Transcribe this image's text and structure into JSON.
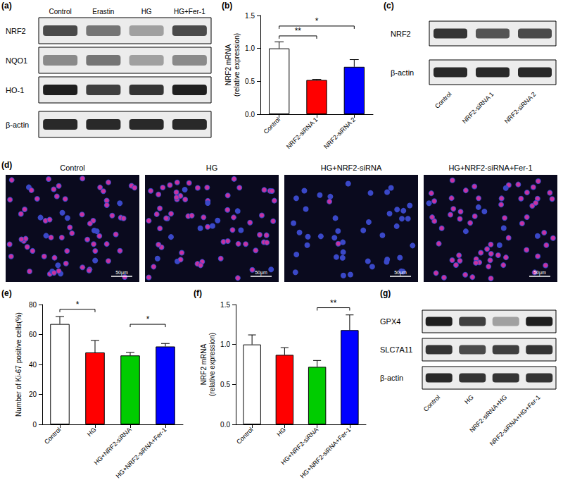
{
  "panels": {
    "a": {
      "label": "(a)",
      "columns": [
        "Control",
        "Erastin",
        "HG",
        "HG+Fer-1"
      ],
      "rows": [
        {
          "name": "NRF2",
          "bands": [
            0.75,
            0.55,
            0.35,
            0.75
          ]
        },
        {
          "name": "NQO1",
          "bands": [
            0.45,
            0.55,
            0.35,
            0.45
          ]
        },
        {
          "name": "HO-1",
          "bands": [
            0.95,
            0.8,
            0.85,
            0.95
          ]
        },
        {
          "name": "β-actin",
          "bands": [
            0.9,
            0.9,
            0.9,
            0.9
          ]
        }
      ]
    },
    "c": {
      "label": "(c)",
      "columns": [
        "Control",
        "NRF2-siRNA 1",
        "NRF2-siRNA 2"
      ],
      "rows": [
        {
          "name": "NRF2",
          "bands": [
            0.85,
            0.7,
            0.75
          ]
        },
        {
          "name": "β-actin",
          "bands": [
            0.9,
            0.9,
            0.9
          ]
        }
      ]
    },
    "d": {
      "label": "(d)",
      "images": [
        "Control",
        "HG",
        "HG+NRF2-siRNA",
        "HG+NRF2-siRNA+Fer-1"
      ],
      "scale_bar": "50μm"
    },
    "g": {
      "label": "(g)",
      "columns": [
        "Control",
        "HG",
        "NRF2-siRNA+HG",
        "NRF2-siRNA+HG+Fer-1"
      ],
      "rows": [
        {
          "name": "GPX4",
          "bands": [
            0.95,
            0.8,
            0.35,
            0.95
          ]
        },
        {
          "name": "SLC7A11",
          "bands": [
            0.85,
            0.75,
            0.8,
            0.85
          ]
        },
        {
          "name": "β-actin",
          "bands": [
            0.9,
            0.85,
            0.85,
            0.85
          ]
        }
      ]
    }
  },
  "chart_data": [
    {
      "type": "bar",
      "title": "(b)",
      "y_label": [
        "NRF2 mRNA",
        "(relative expression)"
      ],
      "categories": [
        "Control",
        "NRF2-siRNA 1",
        "NRF2-siRNA 2"
      ],
      "values": [
        1.0,
        0.52,
        0.72
      ],
      "errors": [
        0.1,
        0.01,
        0.11
      ],
      "colors": [
        "#ffffff",
        "#ff0000",
        "#0000ff"
      ],
      "ylim": [
        0,
        1.5
      ],
      "yticks": [
        {
          "value": 0,
          "label": "0.0"
        },
        {
          "value": 0.5,
          "label": "0.5"
        },
        {
          "value": 1,
          "label": "1.0"
        },
        {
          "value": 1.5,
          "label": "1.5"
        }
      ],
      "grid": false,
      "significance": [
        {
          "from": 0,
          "to": 1,
          "label": "**"
        },
        {
          "from": 0,
          "to": 2,
          "label": "*"
        }
      ]
    },
    {
      "type": "bar",
      "title": "(e)",
      "y_label": [
        "Number of Ki-67 positive cells(%)"
      ],
      "categories": [
        "Control",
        "HG",
        "HG+NRF2-siRNA",
        "HG+NRF2-siRNA+Fer-1"
      ],
      "values": [
        67,
        48,
        46,
        52
      ],
      "errors": [
        5,
        8,
        2,
        2
      ],
      "colors": [
        "#ffffff",
        "#ff0000",
        "#00cc00",
        "#0000ff"
      ],
      "ylim": [
        0,
        80
      ],
      "yticks": [
        0,
        20,
        40,
        60,
        80
      ],
      "grid": false,
      "significance": [
        {
          "from": 0,
          "to": 1,
          "label": "*"
        },
        {
          "from": 2,
          "to": 3,
          "label": "*"
        }
      ]
    },
    {
      "type": "bar",
      "title": "(f)",
      "y_label": [
        "NRF2 mRNA",
        "(relative expression)"
      ],
      "categories": [
        "Control",
        "HG",
        "HG+NRF2-siRNA",
        "HG+NRF2-siRNA+Fer-1"
      ],
      "values": [
        1.0,
        0.87,
        0.72,
        1.18
      ],
      "errors": [
        0.12,
        0.09,
        0.08,
        0.19
      ],
      "colors": [
        "#ffffff",
        "#ff0000",
        "#00cc00",
        "#0000ff"
      ],
      "ylim": [
        0,
        1.5
      ],
      "yticks": [
        {
          "value": 0,
          "label": "0.0"
        },
        {
          "value": 0.5,
          "label": "0.5"
        },
        {
          "value": 1,
          "label": "1.0"
        },
        {
          "value": 1.5,
          "label": "1.5"
        }
      ],
      "grid": false,
      "significance": [
        {
          "from": 2,
          "to": 3,
          "label": "**"
        }
      ]
    }
  ]
}
